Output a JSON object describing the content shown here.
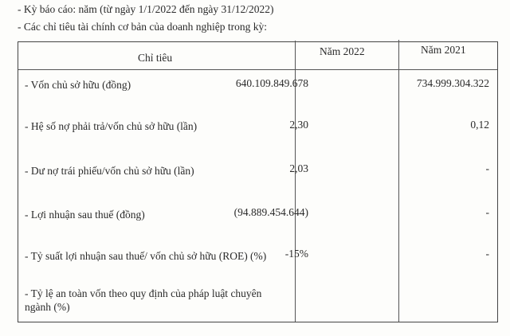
{
  "intro": {
    "period": "- Kỳ báo cáo: năm (từ ngày 1/1/2022 đến ngày 31/12/2022)",
    "heading": "- Các chỉ tiêu tài chính cơ bản của doanh nghiệp trong kỳ:"
  },
  "table": {
    "headers": [
      "Chỉ tiêu",
      "Năm 2022",
      "Năm 2021"
    ],
    "rows": [
      {
        "label": "- Vốn chủ sở hữu (đồng)",
        "y2022": "640.109.849.678",
        "y2021": "734.999.304.322"
      },
      {
        "label": "- Hệ số nợ phải trả/vốn chủ sở hữu (lần)",
        "y2022": "2,30",
        "y2021": "0,12"
      },
      {
        "label": "- Dư nợ trái phiếu/vốn chủ sở hữu (lần)",
        "y2022": "2,03",
        "y2021": "-"
      },
      {
        "label": "- Lợi nhuận sau thuế (đồng)",
        "y2022": "(94.889.454.644)",
        "y2021": "-"
      },
      {
        "label": "- Tỷ suất lợi nhuận sau thuế/ vốn chủ sở hữu (ROE) (%)",
        "y2022": "-15%",
        "y2021": "-"
      },
      {
        "label": "- Tỷ lệ an toàn vốn theo quy định của pháp luật chuyên",
        "label2": "ngành (%)",
        "y2022": "",
        "y2021": ""
      }
    ]
  }
}
